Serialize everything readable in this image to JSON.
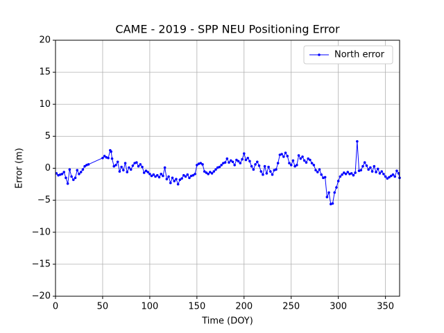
{
  "chart_data": {
    "type": "line",
    "title": "CAME - 2019 - SPP NEU Positioning Error",
    "x_label": "Time (DOY)",
    "y_label": "Error (m)",
    "xlim": [
      0,
      365
    ],
    "ylim": [
      -20,
      20
    ],
    "xticks": [
      0,
      50,
      100,
      150,
      200,
      250,
      300,
      350
    ],
    "yticks": [
      {
        "value": -20,
        "label": "−20"
      },
      {
        "value": -15,
        "label": "−15"
      },
      {
        "value": -10,
        "label": "−10"
      },
      {
        "value": -5,
        "label": "−5"
      },
      0,
      5,
      10,
      15,
      20
    ],
    "grid": true,
    "legend": "upper right",
    "x": [
      1,
      3,
      5,
      7,
      9,
      11,
      13,
      15,
      17,
      19,
      21,
      23,
      25,
      27,
      29,
      31,
      33,
      35,
      50,
      52,
      54,
      56,
      58,
      59,
      60,
      62,
      64,
      66,
      68,
      70,
      72,
      74,
      76,
      78,
      80,
      82,
      84,
      86,
      88,
      90,
      92,
      94,
      96,
      98,
      100,
      102,
      104,
      106,
      108,
      110,
      112,
      114,
      116,
      118,
      120,
      122,
      124,
      126,
      128,
      130,
      132,
      134,
      136,
      138,
      140,
      142,
      144,
      146,
      148,
      150,
      152,
      154,
      156,
      158,
      160,
      162,
      164,
      166,
      168,
      170,
      172,
      174,
      176,
      178,
      180,
      182,
      184,
      186,
      188,
      190,
      192,
      194,
      196,
      198,
      200,
      202,
      204,
      206,
      208,
      210,
      212,
      214,
      216,
      218,
      220,
      222,
      224,
      226,
      228,
      230,
      232,
      234,
      236,
      238,
      240,
      242,
      244,
      246,
      248,
      250,
      252,
      254,
      256,
      258,
      260,
      262,
      264,
      266,
      268,
      270,
      272,
      274,
      276,
      278,
      280,
      282,
      284,
      286,
      288,
      290,
      292,
      294,
      296,
      298,
      300,
      302,
      304,
      306,
      308,
      310,
      312,
      314,
      316,
      318,
      320,
      322,
      324,
      326,
      328,
      330,
      332,
      334,
      336,
      338,
      340,
      342,
      344,
      346,
      348,
      350,
      352,
      354,
      356,
      358,
      360,
      362,
      364,
      365
    ],
    "series": [
      {
        "name": "North error",
        "color": "#0000ff",
        "values": [
          -0.8,
          -1.1,
          -1.0,
          -0.9,
          -0.6,
          -1.5,
          -2.4,
          -0.2,
          -1.3,
          -1.8,
          -1.5,
          -0.3,
          -0.9,
          -0.6,
          -0.2,
          0.3,
          0.5,
          0.6,
          1.6,
          1.9,
          1.7,
          1.6,
          2.8,
          2.6,
          1.5,
          0.3,
          0.5,
          1.0,
          -0.5,
          0.2,
          -0.3,
          0.8,
          -0.6,
          0.1,
          -0.2,
          0.4,
          0.8,
          0.9,
          0.3,
          0.6,
          0.2,
          -0.7,
          -0.4,
          -0.6,
          -0.9,
          -1.2,
          -1.0,
          -1.3,
          -1.1,
          -1.4,
          -0.9,
          -1.2,
          0.1,
          -1.7,
          -1.3,
          -2.3,
          -1.5,
          -2.0,
          -1.7,
          -2.5,
          -1.8,
          -1.6,
          -1.1,
          -1.3,
          -1.0,
          -1.5,
          -1.2,
          -1.1,
          -0.9,
          0.5,
          0.7,
          0.8,
          0.6,
          -0.5,
          -0.7,
          -0.9,
          -0.6,
          -0.8,
          -0.5,
          -0.2,
          0.1,
          0.2,
          0.5,
          0.8,
          0.9,
          1.5,
          0.9,
          1.2,
          1.0,
          0.5,
          1.3,
          1.1,
          0.8,
          1.4,
          2.3,
          1.3,
          1.6,
          1.1,
          0.3,
          -0.2,
          0.6,
          1.0,
          0.4,
          -0.5,
          -1.0,
          0.3,
          -0.8,
          0.2,
          -0.5,
          -1.0,
          -0.3,
          -0.2,
          0.8,
          2.1,
          2.2,
          1.8,
          2.4,
          1.9,
          0.8,
          0.5,
          1.2,
          0.3,
          0.5,
          2.0,
          1.5,
          1.8,
          1.2,
          0.9,
          1.5,
          1.3,
          0.8,
          0.5,
          -0.3,
          -0.6,
          -0.2,
          -1.0,
          -1.5,
          -1.4,
          -4.5,
          -3.8,
          -5.6,
          -5.5,
          -3.8,
          -3.0,
          -2.0,
          -1.3,
          -1.0,
          -0.7,
          -0.9,
          -0.6,
          -0.9,
          -0.8,
          -1.1,
          -0.7,
          4.2,
          -0.4,
          -0.3,
          0.3,
          0.9,
          0.4,
          -0.2,
          0.1,
          -0.5,
          0.3,
          -0.6,
          -0.1,
          -0.8,
          -0.5,
          -0.9,
          -1.3,
          -1.6,
          -1.4,
          -1.2,
          -1.0,
          -1.3,
          -0.4,
          -0.8,
          -1.5
        ]
      }
    ]
  }
}
